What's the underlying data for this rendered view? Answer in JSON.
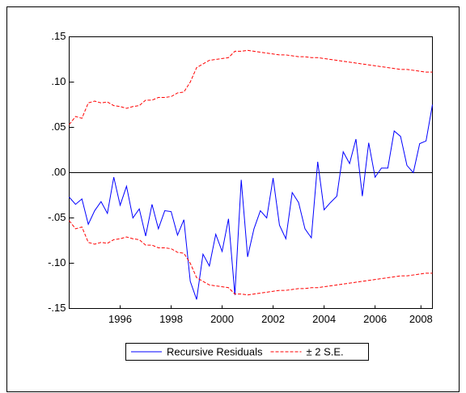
{
  "chart_data": {
    "type": "line",
    "x": [
      1994.5,
      1994.75,
      1995,
      1995.25,
      1995.5,
      1995.75,
      1996,
      1996.25,
      1996.5,
      1996.75,
      1997,
      1997.25,
      1997.5,
      1997.75,
      1998,
      1998.25,
      1998.5,
      1998.75,
      1999,
      1999.25,
      1999.5,
      1999.75,
      2000,
      2000.25,
      2000.5,
      2000.75,
      2001,
      2001.25,
      2001.5,
      2001.75,
      2002,
      2002.25,
      2002.5,
      2002.75,
      2003,
      2003.25,
      2003.5,
      2003.75,
      2004,
      2004.25,
      2004.5,
      2004.75,
      2005,
      2005.25,
      2005.5,
      2005.75,
      2006,
      2006.25,
      2006.5,
      2006.75,
      2007,
      2007.25,
      2007.5,
      2007.75,
      2008,
      2008.25,
      2008.5,
      2008.75
    ],
    "series": [
      {
        "name": "Recursive Residuals",
        "color": "#0000ff",
        "dash": false,
        "values": [
          -0.027,
          -0.035,
          -0.029,
          -0.057,
          -0.042,
          -0.032,
          -0.045,
          -0.005,
          -0.036,
          -0.015,
          -0.05,
          -0.04,
          -0.07,
          -0.035,
          -0.062,
          -0.042,
          -0.043,
          -0.069,
          -0.052,
          -0.12,
          -0.14,
          -0.09,
          -0.103,
          -0.068,
          -0.087,
          -0.051,
          -0.135,
          -0.008,
          -0.093,
          -0.062,
          -0.042,
          -0.05,
          -0.006,
          -0.058,
          -0.073,
          -0.022,
          -0.033,
          -0.062,
          -0.072,
          0.012,
          -0.041,
          -0.033,
          -0.026,
          0.023,
          0.01,
          0.037,
          -0.026,
          0.033,
          -0.005,
          0.005,
          0.005,
          0.046,
          0.04,
          0.008,
          0.0,
          0.032,
          0.035,
          0.075
        ]
      },
      {
        "name": "± 2 S.E.",
        "color": "#ff0000",
        "dash": true,
        "values": [
          0.053,
          0.062,
          0.06,
          0.077,
          0.079,
          0.077,
          0.078,
          0.074,
          0.073,
          0.071,
          0.073,
          0.074,
          0.08,
          0.08,
          0.083,
          0.083,
          0.084,
          0.088,
          0.089,
          0.1,
          0.116,
          0.12,
          0.124,
          0.125,
          0.126,
          0.127,
          0.134,
          0.134,
          0.135,
          0.134,
          0.133,
          0.132,
          0.131,
          0.13,
          0.13,
          0.129,
          0.128,
          0.128,
          0.127,
          0.127,
          0.126,
          0.125,
          0.124,
          0.123,
          0.122,
          0.121,
          0.12,
          0.119,
          0.118,
          0.117,
          0.116,
          0.115,
          0.114,
          0.114,
          0.113,
          0.112,
          0.111,
          0.111
        ],
        "lower": [
          -0.053,
          -0.062,
          -0.06,
          -0.077,
          -0.079,
          -0.077,
          -0.078,
          -0.074,
          -0.073,
          -0.071,
          -0.073,
          -0.074,
          -0.08,
          -0.08,
          -0.083,
          -0.083,
          -0.084,
          -0.088,
          -0.089,
          -0.1,
          -0.116,
          -0.12,
          -0.124,
          -0.125,
          -0.126,
          -0.127,
          -0.134,
          -0.134,
          -0.135,
          -0.134,
          -0.133,
          -0.132,
          -0.131,
          -0.13,
          -0.13,
          -0.129,
          -0.128,
          -0.128,
          -0.127,
          -0.127,
          -0.126,
          -0.125,
          -0.124,
          -0.123,
          -0.122,
          -0.121,
          -0.12,
          -0.119,
          -0.118,
          -0.117,
          -0.116,
          -0.115,
          -0.114,
          -0.114,
          -0.113,
          -0.112,
          -0.111,
          -0.111
        ]
      }
    ],
    "xlim": [
      1994.5,
      2008.75
    ],
    "xticks": [
      {
        "value": 1996.5,
        "label": "1996"
      },
      {
        "value": 1998.5,
        "label": "1998"
      },
      {
        "value": 2000.5,
        "label": "2000"
      },
      {
        "value": 2002.5,
        "label": "2002"
      },
      {
        "value": 2004.5,
        "label": "2004"
      },
      {
        "value": 2006.5,
        "label": "2006"
      },
      {
        "value": 2008.3,
        "label": "2008"
      }
    ],
    "ylim": [
      -0.15,
      0.15
    ],
    "yticks": [
      {
        "value": 0.15,
        "label": ".15"
      },
      {
        "value": 0.1,
        "label": ".10"
      },
      {
        "value": 0.05,
        "label": ".05"
      },
      {
        "value": 0,
        "label": ".00"
      },
      {
        "value": -0.05,
        "label": "-.05"
      },
      {
        "value": -0.1,
        "label": "-.10"
      },
      {
        "value": -0.15,
        "label": "-.15"
      }
    ],
    "zero_line": true,
    "grid": false,
    "legend": "bottom"
  }
}
